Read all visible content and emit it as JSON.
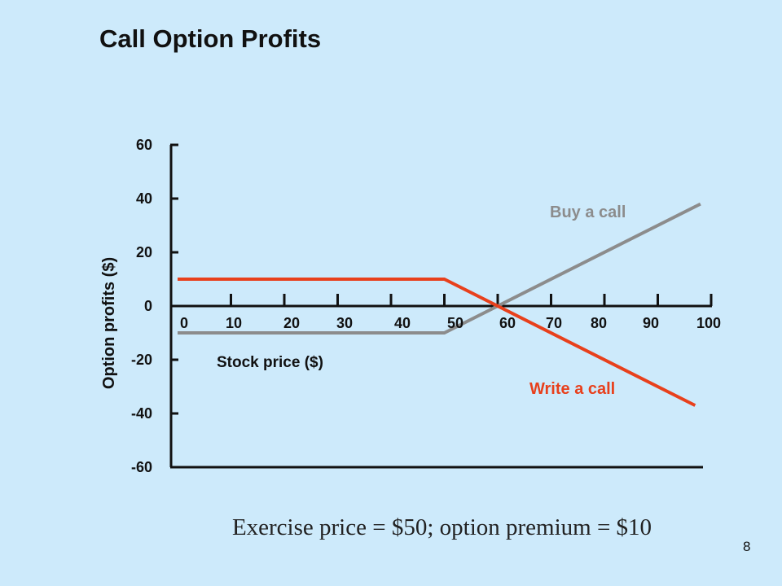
{
  "slide": {
    "title": "Call Option Profits",
    "caption": "Exercise price = $50; option premium = $10",
    "page_number": "8"
  },
  "chart_data": {
    "type": "line",
    "title": "Call Option Profits",
    "xlabel": "Stock price ($)",
    "ylabel": "Option profits ($)",
    "xlim": [
      0,
      100
    ],
    "ylim": [
      -60,
      60
    ],
    "x_ticks": [
      0,
      10,
      20,
      30,
      40,
      50,
      60,
      70,
      80,
      90,
      100
    ],
    "y_ticks": [
      60,
      40,
      20,
      0,
      -20,
      -40,
      -60
    ],
    "grid": false,
    "series": [
      {
        "name": "Buy a call",
        "color": "#8c8c8c",
        "points": [
          [
            0,
            -10
          ],
          [
            50,
            -10
          ],
          [
            98,
            38
          ]
        ]
      },
      {
        "name": "Write a call",
        "color": "#e8401c",
        "points": [
          [
            0,
            10
          ],
          [
            50,
            10
          ],
          [
            97,
            -37
          ]
        ]
      }
    ]
  }
}
